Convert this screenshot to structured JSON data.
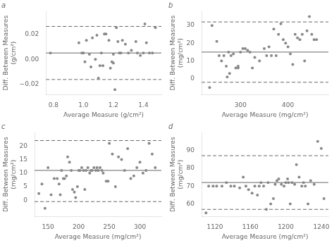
{
  "chart_data": [
    {
      "type": "scatter",
      "title": "a",
      "xlabel": "Average Measure (g/cm²)",
      "ylabel": "Diff. Between Measures\n(g/cm²)",
      "color": "#888888",
      "grid": false,
      "mean_line": 0.005,
      "upper_loa": 0.026,
      "lower_loa": -0.016,
      "xlim": [
        0.75,
        1.52
      ],
      "ylim": [
        -0.028,
        0.038
      ],
      "xticks": [
        0.8,
        {
          "value": 1.0,
          "label": "1.0"
        },
        1.2,
        1.4
      ],
      "yticks": [
        {
          "value": -0.02,
          "label": "−0.02"
        },
        {
          "value": 0.0,
          "label": "0.00"
        },
        0.02
      ],
      "x": [
        0.78,
        0.97,
        0.99,
        1.0,
        1.01,
        1.02,
        1.04,
        1.05,
        1.06,
        1.08,
        1.09,
        1.1,
        1.11,
        1.12,
        1.13,
        1.14,
        1.15,
        1.17,
        1.18,
        1.19,
        1.2,
        1.2,
        1.21,
        1.22,
        1.23,
        1.24,
        1.25,
        1.26,
        1.28,
        1.3,
        1.32,
        1.35,
        1.36,
        1.38,
        1.4,
        1.41,
        1.42,
        1.44,
        1.46,
        1.48
      ],
      "values": [
        0.005,
        0.013,
        0.005,
        0.005,
        -0.002,
        0.015,
        0.004,
        -0.006,
        0.017,
        0.0,
        0.019,
        -0.015,
        -0.005,
        0.005,
        -0.005,
        0.02,
        0.02,
        0.015,
        -0.007,
        -0.002,
        0.004,
        -0.003,
        -0.024,
        0.025,
        0.014,
        0.005,
        0.005,
        0.015,
        0.012,
        0.005,
        0.007,
        0.014,
        0.005,
        0.003,
        0.005,
        0.028,
        0.013,
        0.005,
        0.005,
        0.025
      ]
    },
    {
      "type": "scatter",
      "title": "b",
      "xlabel": "Average Measure (mg/cm²)",
      "ylabel": "Diff. Between Measures\n(mg/cm²)",
      "color": "#888888",
      "grid": false,
      "mean_line": 15.0,
      "upper_loa": 32.0,
      "lower_loa": -2.0,
      "xlim": [
        218,
        485
      ],
      "ylim": [
        -9,
        38
      ],
      "xticks": [
        300,
        400
      ],
      "yticks": [
        0,
        10,
        20,
        30
      ],
      "x": [
        235,
        240,
        250,
        255,
        260,
        265,
        270,
        272,
        275,
        277,
        280,
        285,
        290,
        295,
        295,
        300,
        305,
        310,
        315,
        320,
        325,
        330,
        340,
        350,
        355,
        360,
        365,
        370,
        375,
        380,
        385,
        390,
        395,
        400,
        405,
        410,
        415,
        420,
        425,
        430,
        435,
        440,
        445,
        450,
        455,
        460
      ],
      "values": [
        -5,
        30,
        21,
        13,
        10,
        13,
        7,
        1,
        15,
        3,
        13,
        14,
        6,
        6,
        7,
        15,
        17,
        17,
        16,
        15,
        6,
        12,
        10,
        17,
        13,
        18,
        13,
        28,
        13,
        25,
        31,
        22,
        20,
        18,
        14,
        8,
        25,
        23,
        22,
        25,
        10,
        27,
        35,
        25,
        22,
        22
      ]
    },
    {
      "type": "scatter",
      "title": "c",
      "xlabel": "Average Measure (mg/cm²)",
      "ylabel": "Diff. Between Measures\n(mg/cm²)",
      "color": "#888888",
      "grid": false,
      "mean_line": 11.0,
      "upper_loa": 22.0,
      "lower_loa": -0.5,
      "xlim": [
        128,
        335
      ],
      "ylim": [
        -6,
        25
      ],
      "xticks": [
        150,
        200,
        250,
        300
      ],
      "yticks": [
        0,
        5,
        10,
        15,
        20
      ],
      "x": [
        135,
        140,
        145,
        150,
        155,
        160,
        165,
        168,
        170,
        172,
        175,
        177,
        180,
        182,
        185,
        188,
        190,
        193,
        195,
        198,
        200,
        202,
        205,
        208,
        210,
        212,
        215,
        218,
        220,
        222,
        225,
        228,
        230,
        232,
        235,
        238,
        240,
        245,
        248,
        250,
        255,
        260,
        265,
        270,
        275,
        280,
        285,
        290,
        295,
        300,
        305,
        310,
        315,
        320,
        325
      ],
      "values": [
        2.5,
        6,
        -3,
        12,
        2,
        8,
        8,
        6,
        2,
        11,
        8,
        8,
        9,
        16,
        14,
        11,
        4,
        3,
        1,
        5,
        11,
        11,
        12,
        11,
        4,
        11,
        12,
        10,
        11,
        11,
        12,
        11,
        12,
        11,
        12,
        11,
        10,
        7,
        7,
        21,
        17,
        5,
        16,
        15,
        11,
        19,
        8,
        9,
        12,
        14,
        10,
        11,
        21,
        17,
        12
      ]
    },
    {
      "type": "scatter",
      "title": "d",
      "xlabel": "Average Measure (mg/cm²)",
      "ylabel": "Diff. Between Measures\n(mg/cm²)",
      "color": "#888888",
      "grid": false,
      "mean_line": 72.0,
      "upper_loa": 87.0,
      "lower_loa": 57.0,
      "xlim": [
        1105,
        1248
      ],
      "ylim": [
        53,
        100
      ],
      "xticks": [
        1120,
        1160,
        1200,
        1240
      ],
      "yticks": [
        60,
        70,
        80,
        90
      ],
      "x": [
        1110,
        1113,
        1118,
        1122,
        1128,
        1133,
        1138,
        1142,
        1148,
        1152,
        1155,
        1158,
        1162,
        1165,
        1168,
        1170,
        1172,
        1175,
        1178,
        1180,
        1183,
        1186,
        1188,
        1190,
        1192,
        1195,
        1198,
        1200,
        1202,
        1203,
        1205,
        1207,
        1210,
        1212,
        1215,
        1218,
        1220,
        1222,
        1225,
        1228,
        1232,
        1236,
        1240,
        1243
      ],
      "values": [
        55,
        70,
        70,
        70,
        70,
        72,
        70,
        70,
        69,
        75,
        70,
        68,
        66,
        70,
        65,
        70,
        72,
        70,
        57,
        72,
        60,
        63,
        71,
        73,
        74,
        71,
        70,
        72,
        74,
        72,
        60,
        72,
        71,
        82,
        75,
        70,
        72,
        70,
        60,
        73,
        71,
        95,
        91,
        63
      ]
    }
  ]
}
